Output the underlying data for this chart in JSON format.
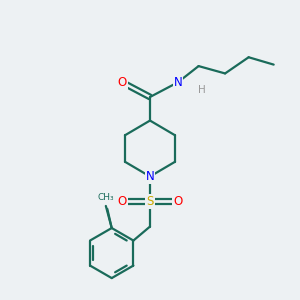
{
  "bg_color": "#edf1f3",
  "bond_color": "#1a6b5a",
  "atom_colors": {
    "O": "#ff0000",
    "N": "#0000ff",
    "S": "#ccaa00",
    "H": "#999999",
    "C": "#1a6b5a"
  },
  "figsize": [
    3.0,
    3.0
  ],
  "dpi": 100
}
